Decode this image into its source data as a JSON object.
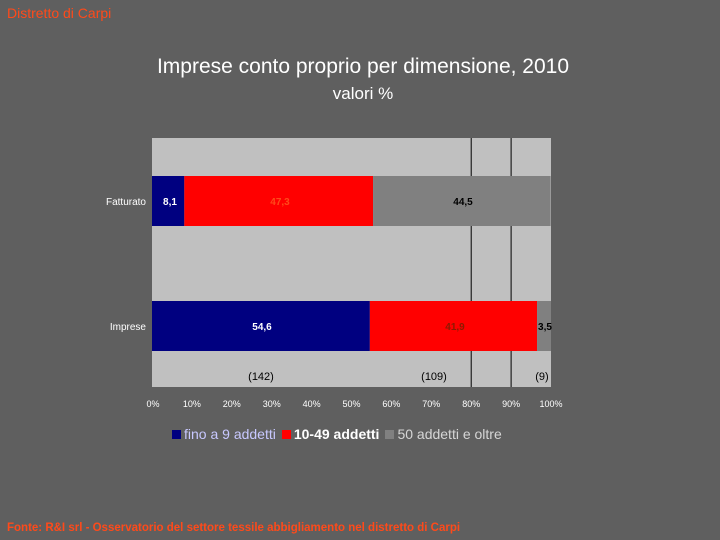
{
  "header": {
    "corner_title": "Distretto di Carpi",
    "title": "Imprese conto proprio per dimensione, 2010",
    "subtitle": "valori %"
  },
  "footer": {
    "source": "Fonte: R&I  srl - Osservatorio del settore tessile abbigliamento nel distretto di Carpi"
  },
  "colors": {
    "background": "#5f5f5f",
    "plot_area": "#c0c0c0",
    "series_small": "#000080",
    "series_medium": "#ff0000",
    "series_large": "#808080",
    "accent_text": "#ff4a1a"
  },
  "chart_data": {
    "type": "bar",
    "orientation": "horizontal",
    "stacked": true,
    "categories": [
      "Fatturato",
      "Imprese"
    ],
    "series": [
      {
        "name": "fino a 9 addetti",
        "values": [
          8.1,
          54.6
        ],
        "labels": [
          "8,1",
          "54,6"
        ]
      },
      {
        "name": "10-49 addetti",
        "values": [
          47.3,
          41.9
        ],
        "labels": [
          "47,3",
          "41,9"
        ]
      },
      {
        "name": "50 addetti e oltre",
        "values": [
          44.5,
          3.5
        ],
        "labels": [
          "44,5",
          "3,5"
        ]
      }
    ],
    "xlim": [
      0,
      100
    ],
    "x_ticks": [
      "0%",
      "10%",
      "20%",
      "30%",
      "40%",
      "50%",
      "60%",
      "70%",
      "80%",
      "90%",
      "100%"
    ],
    "counts": [
      "(142)",
      "(109)",
      "(9)"
    ],
    "legend_position": "bottom",
    "grid": false
  }
}
